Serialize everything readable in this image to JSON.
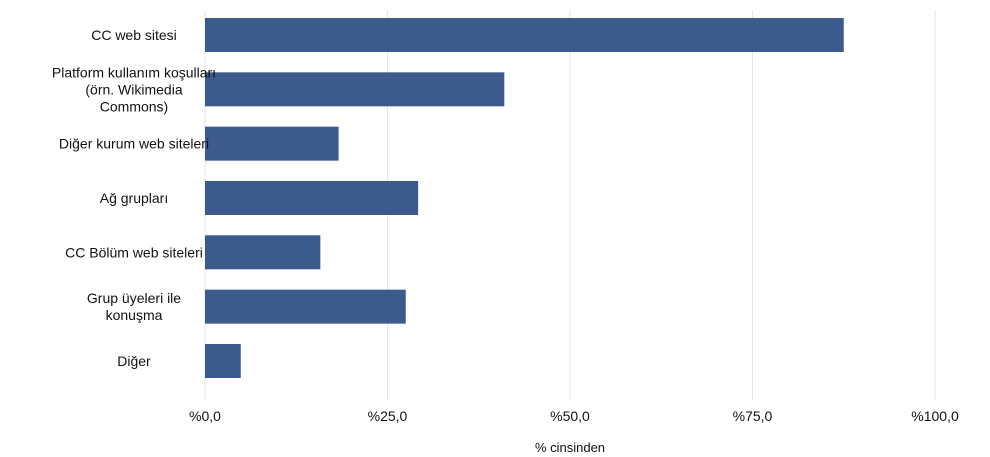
{
  "chart_data": {
    "type": "bar",
    "orientation": "horizontal",
    "categories": [
      [
        "CC web sitesi"
      ],
      [
        "Platform kullanım koşulları",
        "(örn. Wikimedia",
        "Commons)"
      ],
      [
        "Diğer kurum web siteleri"
      ],
      [
        "Ağ grupları"
      ],
      [
        "CC Bölüm web siteleri"
      ],
      [
        "Grup üyeleri ile",
        "konuşma"
      ],
      [
        "Diğer"
      ]
    ],
    "values": [
      87.5,
      41,
      18.3,
      29.2,
      15.8,
      27.5,
      4.9
    ],
    "xlim": [
      0,
      100
    ],
    "xticks": [
      0,
      25,
      50,
      75,
      100
    ],
    "xtick_labels": [
      "%0,0",
      "%25,0",
      "%50,0",
      "%75,0",
      "%100,0"
    ],
    "xlabel": "% cinsinden",
    "ylabel": "",
    "title": "",
    "grid": true,
    "legend": "none",
    "bar_color": "#3d5a8c"
  }
}
